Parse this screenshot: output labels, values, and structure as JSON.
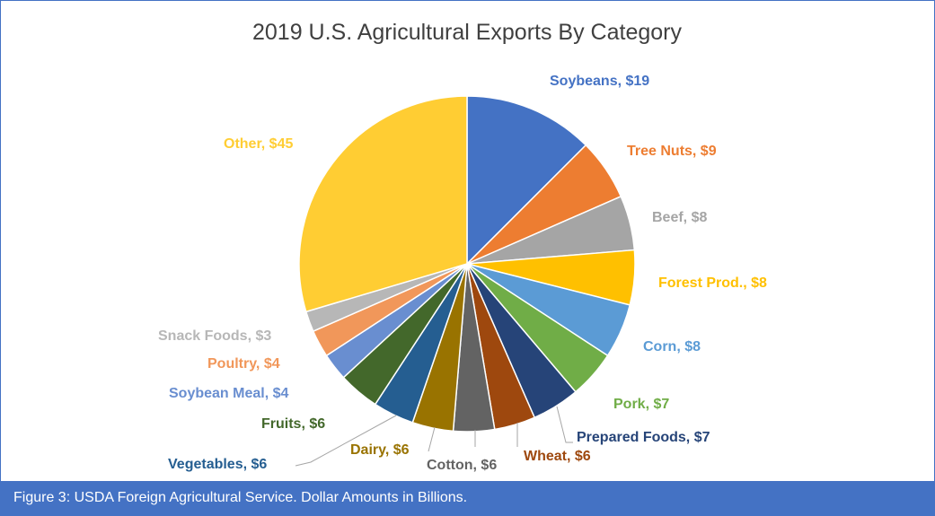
{
  "chart_data": {
    "type": "pie",
    "title": "2019 U.S. Agricultural Exports By Category",
    "start_angle_deg": 0,
    "direction": "clockwise",
    "slices": [
      {
        "label": "Soybeans",
        "value": 19,
        "value_label": "$19",
        "color": "#4472C4"
      },
      {
        "label": "Tree Nuts",
        "value": 9,
        "value_label": "$9",
        "color": "#ED7D31"
      },
      {
        "label": "Beef",
        "value": 8,
        "value_label": "$8",
        "color": "#A5A5A5"
      },
      {
        "label": "Forest Prod.",
        "value": 8,
        "value_label": "$8",
        "color": "#FFC000"
      },
      {
        "label": "Corn",
        "value": 8,
        "value_label": "$8",
        "color": "#5B9BD5"
      },
      {
        "label": "Pork",
        "value": 7,
        "value_label": "$7",
        "color": "#70AD47"
      },
      {
        "label": "Prepared Foods",
        "value": 7,
        "value_label": "$7",
        "color": "#264478"
      },
      {
        "label": "Wheat",
        "value": 6,
        "value_label": "$6",
        "color": "#9E480E"
      },
      {
        "label": "Cotton",
        "value": 6,
        "value_label": "$6",
        "color": "#636363"
      },
      {
        "label": "Dairy",
        "value": 6,
        "value_label": "$6",
        "color": "#997300"
      },
      {
        "label": "Vegetables",
        "value": 6,
        "value_label": "$6",
        "color": "#255E91"
      },
      {
        "label": "Fruits",
        "value": 6,
        "value_label": "$6",
        "color": "#43682B"
      },
      {
        "label": "Soybean Meal",
        "value": 4,
        "value_label": "$4",
        "color": "#698ED0"
      },
      {
        "label": "Poultry",
        "value": 4,
        "value_label": "$4",
        "color": "#F1975A"
      },
      {
        "label": "Snack Foods",
        "value": 3,
        "value_label": "$3",
        "color": "#B7B7B7"
      },
      {
        "label": "Other",
        "value": 45,
        "value_label": "$45",
        "color": "#FFCD33"
      }
    ]
  },
  "caption": "Figure 3: USDA Foreign Agricultural Service. Dollar Amounts in Billions."
}
